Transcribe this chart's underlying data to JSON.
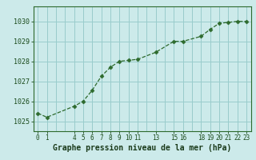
{
  "x": [
    0,
    1,
    4,
    5,
    6,
    7,
    8,
    9,
    10,
    11,
    13,
    15,
    16,
    18,
    19,
    20,
    21,
    22,
    23
  ],
  "y": [
    1025.4,
    1025.2,
    1025.75,
    1026.0,
    1026.55,
    1027.25,
    1027.7,
    1028.0,
    1028.05,
    1028.1,
    1028.45,
    1029.0,
    1029.0,
    1029.25,
    1029.6,
    1029.9,
    1029.95,
    1030.0,
    1030.0
  ],
  "xticks": [
    0,
    1,
    4,
    5,
    6,
    7,
    8,
    9,
    10,
    11,
    13,
    15,
    16,
    18,
    19,
    20,
    21,
    22,
    23
  ],
  "yticks": [
    1025,
    1026,
    1027,
    1028,
    1029,
    1030
  ],
  "ylim": [
    1024.5,
    1030.75
  ],
  "xlim": [
    -0.5,
    23.5
  ],
  "xlabel": "Graphe pression niveau de la mer (hPa)",
  "line_color": "#2d6a2d",
  "marker_color": "#2d6a2d",
  "bg_color": "#cceaea",
  "grid_color": "#99cccc",
  "border_color": "#2d6a2d",
  "tick_color": "#1a4a1a",
  "xlabel_color": "#1a3a1a",
  "xlabel_fontsize": 7,
  "tick_fontsize": 5.5
}
